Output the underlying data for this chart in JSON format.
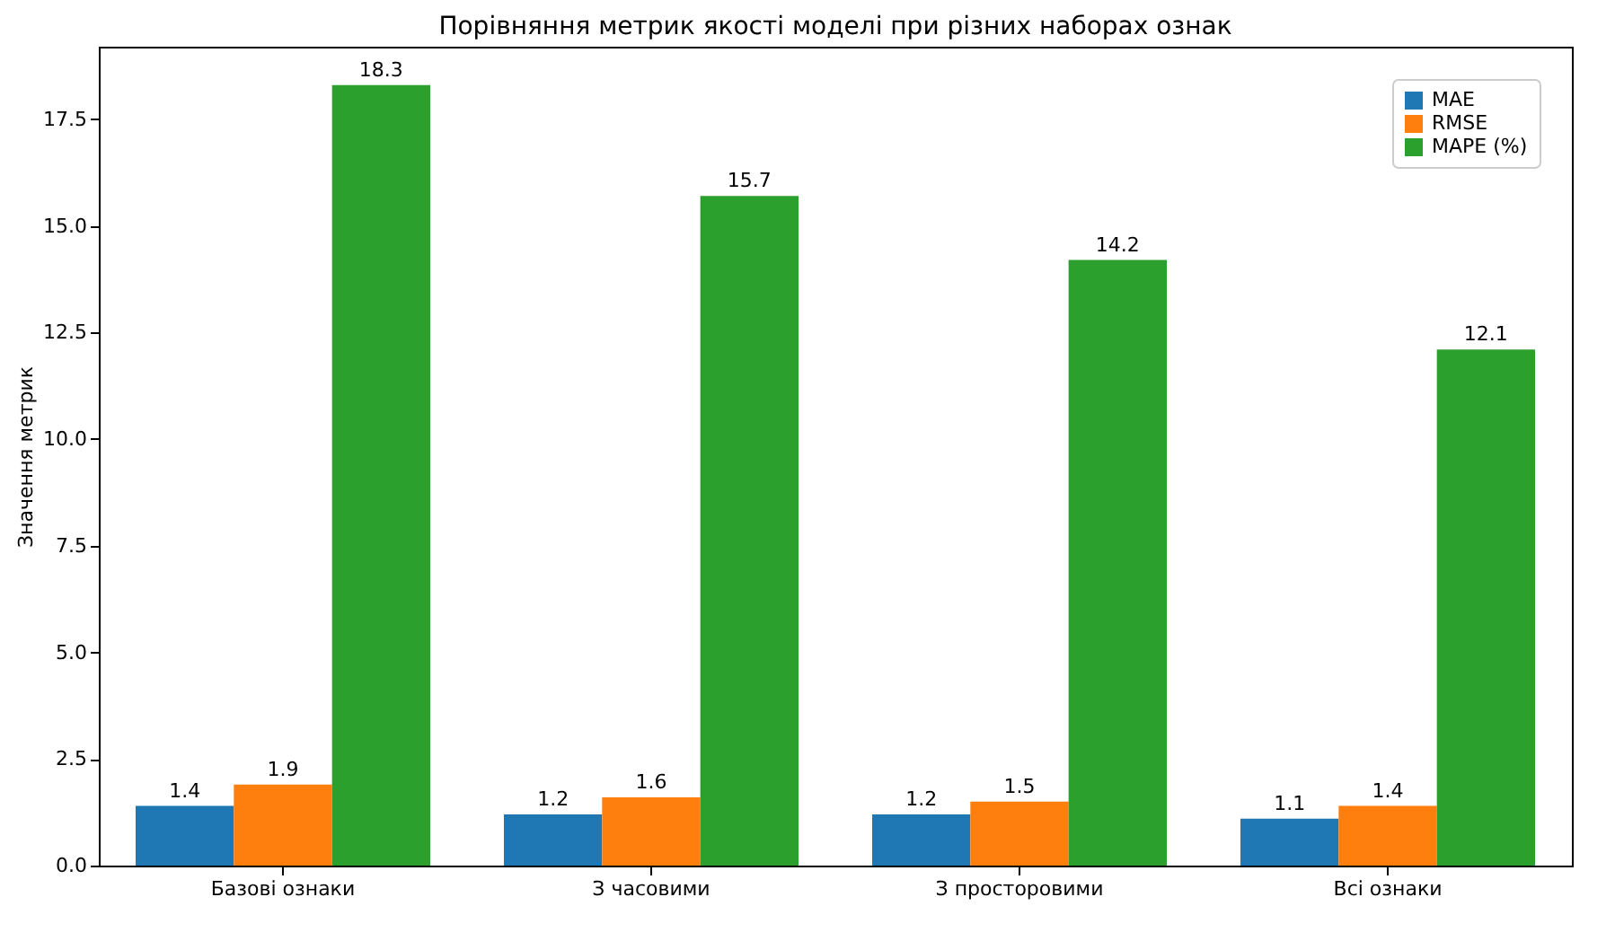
{
  "chart_data": {
    "type": "bar",
    "title": "Порівняння метрик якості моделі при різних наборах ознак",
    "ylabel": "Значення метрик",
    "categories": [
      "Базові ознаки",
      "З часовими",
      "З просторовими",
      "Всі ознаки"
    ],
    "series": [
      {
        "name": "MAE",
        "color": "#1f77b4",
        "values": [
          1.4,
          1.2,
          1.2,
          1.1
        ]
      },
      {
        "name": "RMSE",
        "color": "#ff7f0e",
        "values": [
          1.9,
          1.6,
          1.5,
          1.4
        ]
      },
      {
        "name": "MAPE (%)",
        "color": "#2ca02c",
        "values": [
          18.3,
          15.7,
          14.2,
          12.1
        ]
      }
    ],
    "ylim": [
      0,
      19.2
    ],
    "yticks": [
      {
        "value": 0,
        "label": "0.0"
      },
      2.5,
      {
        "value": 5,
        "label": "5.0"
      },
      7.5,
      {
        "value": 10,
        "label": "10.0"
      },
      12.5,
      {
        "value": 15,
        "label": "15.0"
      },
      17.5
    ],
    "data_labels": true,
    "grid": false,
    "legend": "top right"
  }
}
